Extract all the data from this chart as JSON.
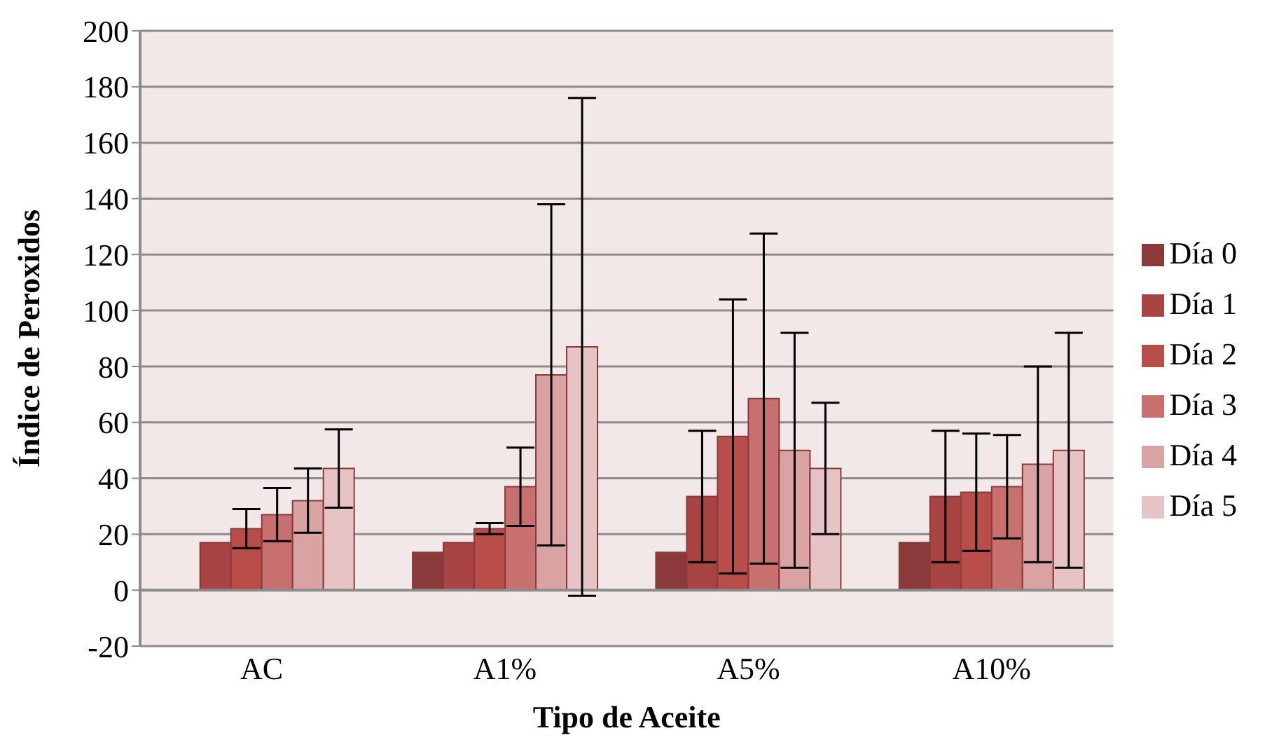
{
  "chart_data": {
    "type": "bar",
    "xlabel": "Tipo de Aceite",
    "ylabel": "Índice de Peroxidos",
    "categories": [
      "AC",
      "A1%",
      "A5%",
      "A10%"
    ],
    "series": [
      {
        "name": "Día 0",
        "color": "#8b3a3a",
        "values": [
          0,
          13.5,
          13.5,
          17
        ],
        "errors": [
          0,
          0,
          0,
          0
        ]
      },
      {
        "name": "Día 1",
        "color": "#a84444",
        "values": [
          17,
          17,
          33.5,
          33.5
        ],
        "errors": [
          0,
          0,
          23.5,
          23.5
        ]
      },
      {
        "name": "Día 2",
        "color": "#b94d4a",
        "values": [
          22,
          22,
          55,
          35
        ],
        "errors": [
          7,
          2,
          49,
          21
        ]
      },
      {
        "name": "Día 3",
        "color": "#c87070",
        "values": [
          27,
          37,
          68.5,
          37
        ],
        "errors": [
          9.5,
          14,
          59,
          18.5
        ]
      },
      {
        "name": "Día 4",
        "color": "#d9a3a3",
        "values": [
          32,
          77,
          50,
          45
        ],
        "errors": [
          11.5,
          61,
          42,
          35
        ]
      },
      {
        "name": "Día 5",
        "color": "#e6c3c5",
        "values": [
          43.5,
          87,
          43.5,
          50
        ],
        "errors": [
          14,
          89,
          23.5,
          42
        ]
      }
    ],
    "ylim": [
      -20,
      200
    ],
    "yticks": [
      -20,
      0,
      20,
      40,
      60,
      80,
      100,
      120,
      140,
      160,
      180,
      200
    ],
    "grid": "y",
    "legend": "right"
  }
}
